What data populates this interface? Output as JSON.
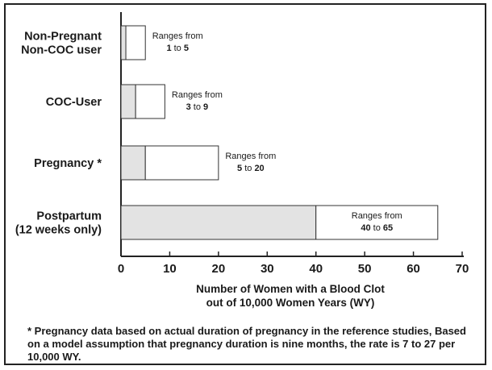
{
  "chart_data": {
    "type": "bar",
    "orientation": "horizontal",
    "categories": [
      [
        "Non-Pregnant",
        "Non-COC user"
      ],
      [
        "COC-User"
      ],
      [
        "Pregnancy *"
      ],
      [
        "Postpartum",
        "(12 weeks only)"
      ]
    ],
    "series": [
      {
        "low": [
          1,
          3,
          5,
          40
        ],
        "high": [
          5,
          9,
          20,
          65
        ]
      }
    ],
    "range_text": {
      "prefix": "Ranges from",
      "connector": "to",
      "low_labels": [
        "1",
        "3",
        "5",
        "40"
      ],
      "high_labels": [
        "5",
        "9",
        "20",
        "65"
      ]
    },
    "xticks": [
      "0",
      "10",
      "20",
      "30",
      "40",
      "50",
      "60",
      "70"
    ],
    "xlim": [
      0,
      70
    ],
    "xlabel": [
      "Number of Women with a Blood Clot",
      "out of 10,000 Women Years (WY)"
    ],
    "grid": false,
    "colors": {
      "low_fill": "#e3e3e3",
      "high_fill": "#ffffff",
      "stroke": "#333333"
    }
  },
  "footnote": "* Pregnancy data based on actual duration of pregnancy in the reference studies, Based on a model assumption that pregnancy duration is nine months, the rate is 7 to 27 per 10,000 WY."
}
